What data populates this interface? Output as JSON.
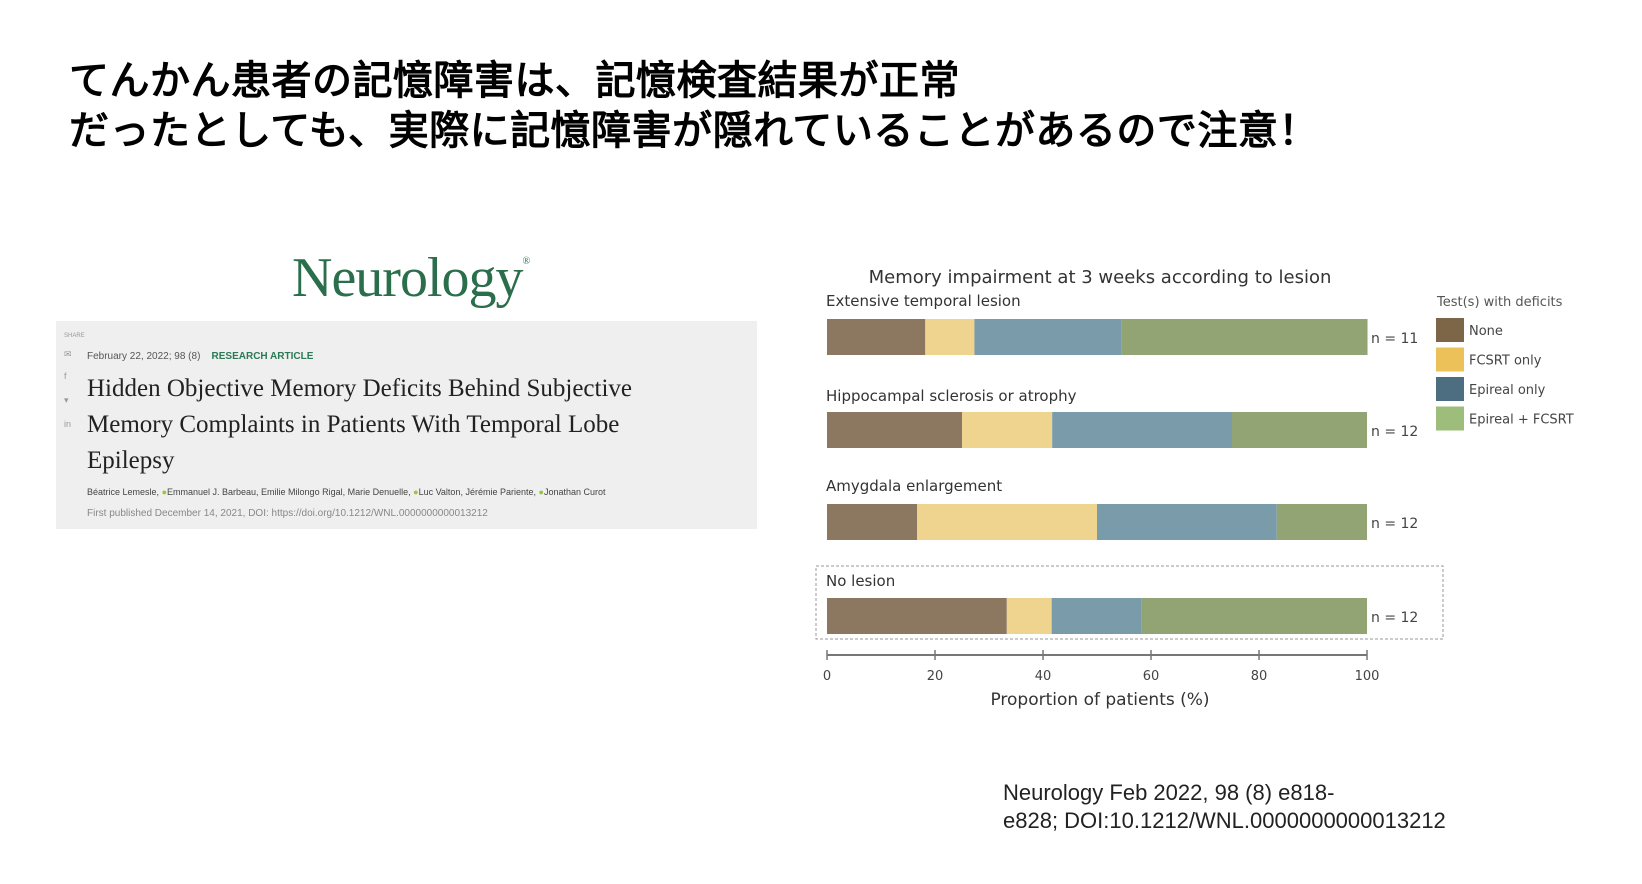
{
  "headline": {
    "line1": "てんかん患者の記憶障害は、記憶検査結果が正常",
    "line2": "だったとしても、実際に記憶障害が隠れていることがあるので注意！"
  },
  "journal_logo": "Neurology",
  "paper": {
    "share_label": "SHARE",
    "share_icons": [
      "mail-icon",
      "facebook-icon",
      "twitter-icon",
      "linkedin-icon"
    ],
    "issue": "February 22, 2022; 98 (8)",
    "article_type": "RESEARCH ARTICLE",
    "title_lines": [
      "Hidden Objective Memory Deficits Behind Subjective",
      "Memory Complaints in Patients With Temporal Lobe",
      "Epilepsy"
    ],
    "authors": [
      "Béatrice Lemesle,",
      "Emmanuel J. Barbeau, Emilie Milongo Rigal, Marie Denuelle,",
      "Luc Valton, Jérémie Pariente,",
      "Jonathan Curot"
    ],
    "published": "First published December 14, 2021, DOI: https://doi.org/10.1212/WNL.0000000000013212"
  },
  "chart_data": {
    "type": "bar",
    "orientation": "horizontal-stacked",
    "title": "Memory impairment at 3 weeks according to lesion",
    "xlabel": "Proportion of patients (%)",
    "xlim": [
      0,
      100
    ],
    "xticks": [
      "0",
      "20",
      "40",
      "60",
      "80",
      "100"
    ],
    "grid": false,
    "legend": {
      "title": "Test(s) with deficits",
      "placement": "right"
    },
    "categories": [
      "Extensive temporal lesion",
      "Hippocampal sclerosis or atrophy",
      "Amygdala enlargement",
      "No lesion"
    ],
    "n_labels": [
      "n = 11",
      "n = 12",
      "n = 12",
      "n = 12"
    ],
    "series": [
      {
        "name": "None",
        "color": "#8c7760",
        "legend_color": "#7d6548",
        "values": [
          18.2,
          25.0,
          16.7,
          33.3
        ]
      },
      {
        "name": "FCSRT only",
        "color": "#eed48e",
        "legend_color": "#ecc15a",
        "values": [
          9.1,
          16.7,
          33.3,
          8.3
        ]
      },
      {
        "name": "Epireal only",
        "color": "#7a9caa",
        "legend_color": "#4d6e80",
        "values": [
          27.3,
          33.3,
          33.3,
          16.7
        ]
      },
      {
        "name": "Epireal + FCSRT",
        "color": "#93a474",
        "legend_color": "#9dbd7a",
        "values": [
          45.5,
          25.0,
          16.7,
          41.7
        ]
      }
    ]
  },
  "citation": {
    "line1": "Neurology Feb 2022, 98 (8) e818-",
    "line2": "e828; DOI:10.1212/WNL.0000000000013212"
  }
}
